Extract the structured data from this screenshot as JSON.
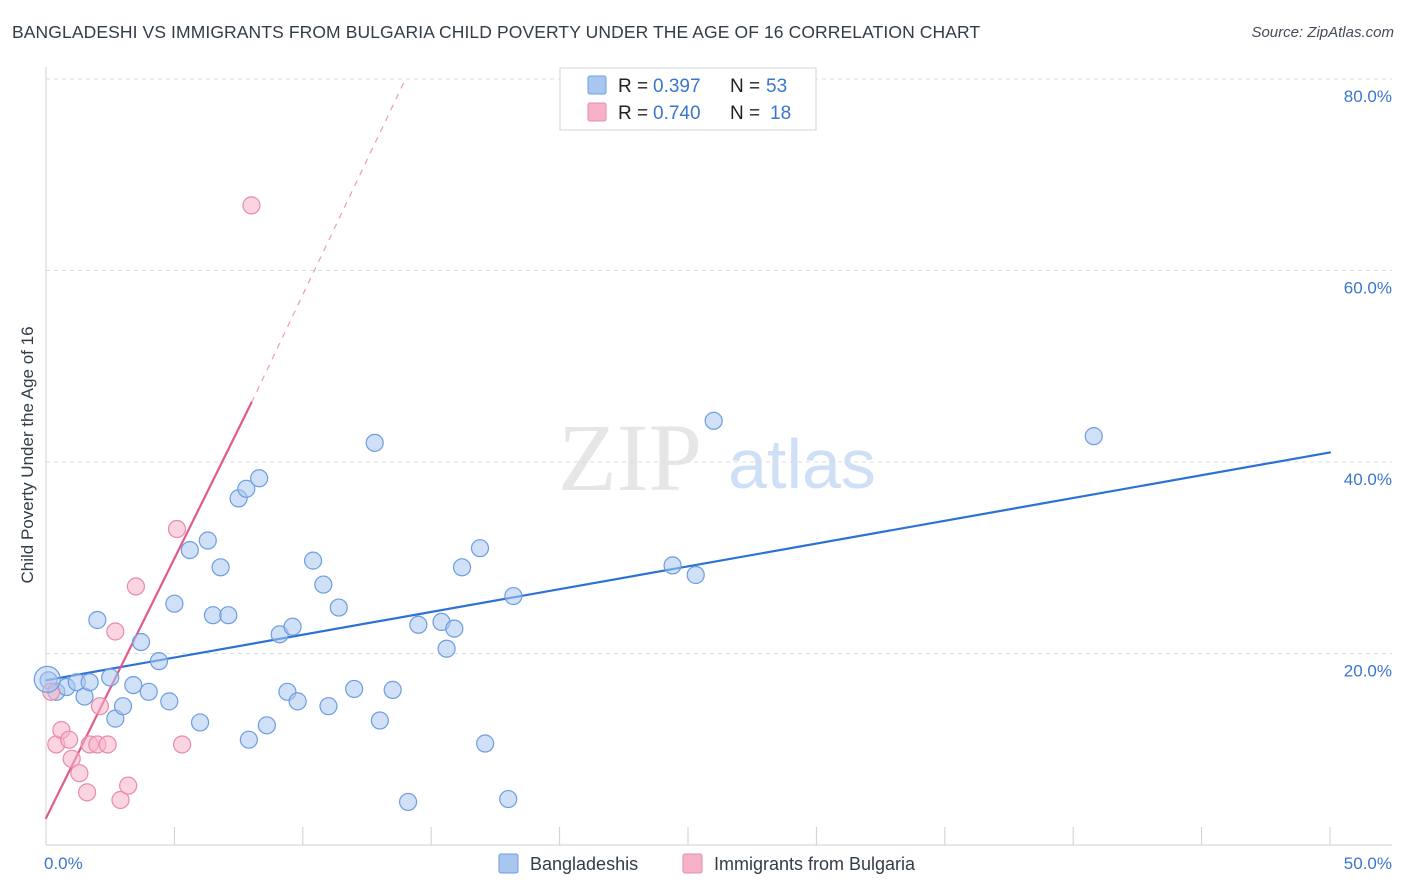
{
  "chart_data": {
    "type": "scatter",
    "title": "BANGLADESHI VS IMMIGRANTS FROM BULGARIA CHILD POVERTY UNDER THE AGE OF 16 CORRELATION CHART",
    "source": "Source: ZipAtlas.com",
    "watermark": {
      "zip": "ZIP",
      "atlas": "atlas"
    },
    "xlabel": "",
    "ylabel": "Child Poverty Under the Age of 16",
    "xlim": [
      0,
      50
    ],
    "ylim": [
      0,
      80
    ],
    "x_tick_labels": {
      "min": "0.0%",
      "max": "50.0%"
    },
    "y_ticks": [
      20,
      40,
      60,
      80
    ],
    "y_tick_labels": [
      "20.0%",
      "40.0%",
      "60.0%",
      "80.0%"
    ],
    "grid": true,
    "legend_position": "top-center",
    "stats": [
      {
        "r_label": "R =",
        "r_value": "0.397",
        "n_label": "N =",
        "n_value": "53"
      },
      {
        "r_label": "R =",
        "r_value": "0.740",
        "n_label": "N =",
        "n_value": "18"
      }
    ],
    "series": [
      {
        "name": "Bangladeshis",
        "color": "#a9c6ef",
        "stroke": "#6d9de0",
        "trend_color": "#2b72d2",
        "trend": {
          "x0": 0,
          "y0": 17.2,
          "x1": 50,
          "y1": 41.0
        },
        "points": [
          [
            0.1,
            17.2
          ],
          [
            0.4,
            16.0
          ],
          [
            0.8,
            16.5
          ],
          [
            1.2,
            17.0
          ],
          [
            1.5,
            15.5
          ],
          [
            1.7,
            17.0
          ],
          [
            2.0,
            23.5
          ],
          [
            2.5,
            17.5
          ],
          [
            2.7,
            13.2
          ],
          [
            3.0,
            14.5
          ],
          [
            3.4,
            16.7
          ],
          [
            3.7,
            21.2
          ],
          [
            4.0,
            16.0
          ],
          [
            4.4,
            19.2
          ],
          [
            4.8,
            15.0
          ],
          [
            5.0,
            25.2
          ],
          [
            5.6,
            30.8
          ],
          [
            6.0,
            12.8
          ],
          [
            6.3,
            31.8
          ],
          [
            6.5,
            24.0
          ],
          [
            6.8,
            29.0
          ],
          [
            7.1,
            24.0
          ],
          [
            7.5,
            36.2
          ],
          [
            7.8,
            37.2
          ],
          [
            7.9,
            11.0
          ],
          [
            8.3,
            38.3
          ],
          [
            8.6,
            12.5
          ],
          [
            9.1,
            22.0
          ],
          [
            9.4,
            16.0
          ],
          [
            9.6,
            22.8
          ],
          [
            9.8,
            15.0
          ],
          [
            10.4,
            29.7
          ],
          [
            10.8,
            27.2
          ],
          [
            11.0,
            14.5
          ],
          [
            11.4,
            24.8
          ],
          [
            12.0,
            16.3
          ],
          [
            12.8,
            42.0
          ],
          [
            13.0,
            13.0
          ],
          [
            13.5,
            16.2
          ],
          [
            14.1,
            4.5
          ],
          [
            14.5,
            23.0
          ],
          [
            15.4,
            23.3
          ],
          [
            15.6,
            20.5
          ],
          [
            15.9,
            22.6
          ],
          [
            16.2,
            29.0
          ],
          [
            16.9,
            31.0
          ],
          [
            17.1,
            10.6
          ],
          [
            18.0,
            4.8
          ],
          [
            18.2,
            26.0
          ],
          [
            24.4,
            29.2
          ],
          [
            25.3,
            28.2
          ],
          [
            26.0,
            44.3
          ],
          [
            40.8,
            42.7
          ]
        ]
      },
      {
        "name": "Immigrants from Bulgaria",
        "color": "#f6b3c8",
        "stroke": "#e98aaa",
        "trend_color": "#e05a8a",
        "trend": {
          "x0": 0,
          "y0": 2.8,
          "x1": 8.0,
          "y1": 46.2
        },
        "trend_dashed_to": {
          "x": 14.0,
          "y": 80.0
        },
        "points": [
          [
            0.2,
            16.0
          ],
          [
            0.4,
            10.5
          ],
          [
            0.6,
            12.0
          ],
          [
            0.9,
            11.0
          ],
          [
            1.0,
            9.0
          ],
          [
            1.3,
            7.5
          ],
          [
            1.6,
            5.5
          ],
          [
            1.7,
            10.5
          ],
          [
            2.0,
            10.5
          ],
          [
            2.1,
            14.5
          ],
          [
            2.4,
            10.5
          ],
          [
            2.7,
            22.3
          ],
          [
            2.9,
            4.7
          ],
          [
            3.2,
            6.2
          ],
          [
            3.5,
            27.0
          ],
          [
            5.1,
            33.0
          ],
          [
            5.3,
            10.5
          ],
          [
            8.0,
            66.8
          ]
        ]
      }
    ]
  }
}
